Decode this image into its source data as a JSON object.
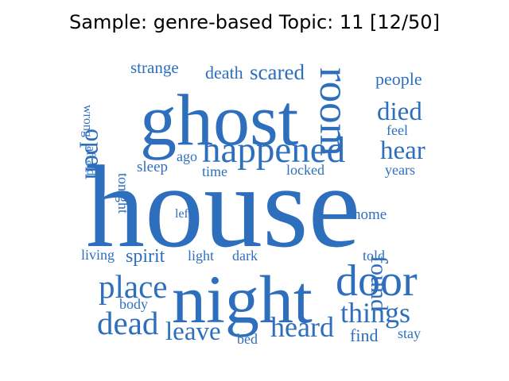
{
  "figure": {
    "title": "Sample: genre-based Topic: 11 [12/50]"
  },
  "cloud": {
    "color": "#2e6fbd",
    "words": [
      {
        "text": "house",
        "size": 1.0,
        "vertical": false
      },
      {
        "text": "ghost",
        "size": 0.62,
        "vertical": false
      },
      {
        "text": "night",
        "size": 0.58,
        "vertical": false
      },
      {
        "text": "door",
        "size": 0.38,
        "vertical": false
      },
      {
        "text": "room",
        "size": 0.36,
        "vertical": true
      },
      {
        "text": "happened",
        "size": 0.32,
        "vertical": false
      },
      {
        "text": "place",
        "size": 0.28,
        "vertical": false
      },
      {
        "text": "dead",
        "size": 0.28,
        "vertical": false
      },
      {
        "text": "heard",
        "size": 0.24,
        "vertical": false
      },
      {
        "text": "things",
        "size": 0.24,
        "vertical": false
      },
      {
        "text": "died",
        "size": 0.22,
        "vertical": false
      },
      {
        "text": "hear",
        "size": 0.22,
        "vertical": false
      },
      {
        "text": "leave",
        "size": 0.22,
        "vertical": false
      },
      {
        "text": "open",
        "size": 0.22,
        "vertical": true
      },
      {
        "text": "found",
        "size": 0.2,
        "vertical": true
      },
      {
        "text": "scared",
        "size": 0.18,
        "vertical": false
      },
      {
        "text": "spirit",
        "size": 0.16,
        "vertical": false
      },
      {
        "text": "people",
        "size": 0.15,
        "vertical": false
      },
      {
        "text": "death",
        "size": 0.15,
        "vertical": false
      },
      {
        "text": "strange",
        "size": 0.14,
        "vertical": false
      },
      {
        "text": "home",
        "size": 0.13,
        "vertical": false
      },
      {
        "text": "find",
        "size": 0.15,
        "vertical": false
      },
      {
        "text": "sleep",
        "size": 0.13,
        "vertical": false
      },
      {
        "text": "ago",
        "size": 0.12,
        "vertical": false
      },
      {
        "text": "feel",
        "size": 0.12,
        "vertical": false
      },
      {
        "text": "years",
        "size": 0.12,
        "vertical": false
      },
      {
        "text": "locked",
        "size": 0.12,
        "vertical": false
      },
      {
        "text": "time",
        "size": 0.12,
        "vertical": false
      },
      {
        "text": "tonight",
        "size": 0.12,
        "vertical": true
      },
      {
        "text": "wrong",
        "size": 0.11,
        "vertical": true
      },
      {
        "text": "afraid",
        "size": 0.11,
        "vertical": true
      },
      {
        "text": "left",
        "size": 0.11,
        "vertical": false
      },
      {
        "text": "light",
        "size": 0.12,
        "vertical": false
      },
      {
        "text": "dark",
        "size": 0.12,
        "vertical": false
      },
      {
        "text": "living",
        "size": 0.12,
        "vertical": false
      },
      {
        "text": "told",
        "size": 0.12,
        "vertical": false
      },
      {
        "text": "body",
        "size": 0.12,
        "vertical": false
      },
      {
        "text": "bed",
        "size": 0.12,
        "vertical": false
      },
      {
        "text": "stay",
        "size": 0.12,
        "vertical": false
      }
    ]
  }
}
